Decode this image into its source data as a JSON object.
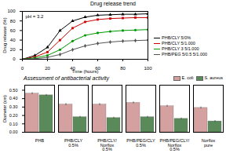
{
  "chart_data": [
    {
      "type": "line",
      "title": "Drug release trend",
      "annotations": [
        "pH = 3.2"
      ],
      "xlabel": "Time (hours)",
      "ylabel": "Drug release (%)",
      "x": [
        0,
        10,
        20,
        30,
        40,
        50,
        60,
        70,
        80,
        90,
        100
      ],
      "series": [
        {
          "name": "PHB/CLY 5/0%",
          "color": "#000000",
          "marker": "triangle",
          "values": [
            0,
            8,
            25,
            60,
            80,
            88,
            92,
            93,
            94,
            94,
            95
          ]
        },
        {
          "name": "PHB/CLY 5/1.000",
          "color": "#cc0000",
          "marker": "square",
          "values": [
            0,
            5,
            15,
            40,
            65,
            78,
            83,
            85,
            86,
            87,
            87
          ]
        },
        {
          "name": "PHB/CLY 3 5/1.000",
          "color": "#009900",
          "marker": "circle",
          "values": [
            0,
            3,
            8,
            20,
            38,
            50,
            55,
            58,
            60,
            61,
            62
          ]
        },
        {
          "name": "PHB/PEG 5/0.5 5/1.000",
          "color": "#555555",
          "marker": "diamond",
          "values": [
            0,
            1,
            4,
            10,
            20,
            28,
            33,
            36,
            38,
            39,
            40
          ]
        }
      ],
      "xlim": [
        0,
        100
      ],
      "ylim": [
        0,
        100
      ],
      "xticks": [
        0,
        20,
        40,
        60,
        80,
        100
      ],
      "yticks": [
        0,
        20,
        40,
        60,
        80,
        100
      ],
      "legend": "lower right",
      "grid": false
    },
    {
      "type": "bar",
      "title": "Assessment of antibacterial activity",
      "ylabel": "Diameter (cm)",
      "categories": [
        "PHB",
        "PHB/CLY\n0.5%",
        "PHB/CLY/\nNorflox\n0.5%",
        "PHB/PEG/CLY\n0.5%",
        "PHB/PEG/CLY/\nNorflox\n0.5%",
        "Norflox\npure"
      ],
      "series": [
        {
          "name": "E. coli",
          "color": "#d4a0a0",
          "values": [
            0.46,
            0.33,
            0.33,
            0.35,
            0.31,
            0.29
          ],
          "errors": [
            0.012,
            0.012,
            0.012,
            0.012,
            0.012,
            0.012
          ]
        },
        {
          "name": "S. aureus",
          "color": "#5a8a5a",
          "values": [
            0.44,
            0.18,
            0.17,
            0.18,
            0.16,
            0.13
          ],
          "errors": [
            0.01,
            0.01,
            0.01,
            0.01,
            0.01,
            0.01
          ]
        }
      ],
      "ylim": [
        0,
        0.56
      ],
      "yticks": [
        0,
        0.1,
        0.2,
        0.3,
        0.4,
        0.5
      ],
      "legend": "upper right",
      "grid": false
    }
  ]
}
